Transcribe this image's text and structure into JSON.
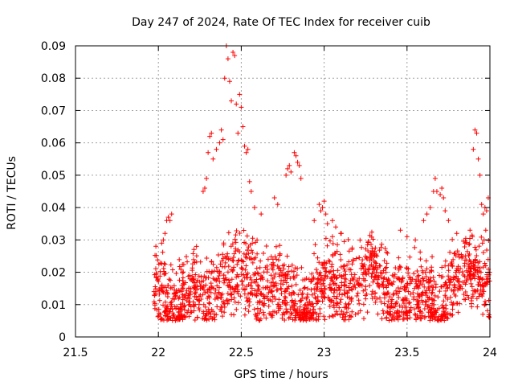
{
  "chart_data": {
    "type": "scatter",
    "title": "Day 247 of 2024, Rate Of TEC Index for receiver cuib",
    "xlabel": "GPS time / hours",
    "ylabel": "ROTI / TECUs",
    "xlim": [
      21.5,
      24
    ],
    "ylim": [
      0,
      0.09
    ],
    "xticks": [
      21.5,
      22,
      22.5,
      23,
      23.5,
      24
    ],
    "xtick_labels": [
      "21.5",
      "22",
      "22.5",
      "23",
      "23.5",
      "24"
    ],
    "yticks": [
      0,
      0.01,
      0.02,
      0.03,
      0.04,
      0.05,
      0.06,
      0.07,
      0.08,
      0.09
    ],
    "ytick_labels": [
      "0",
      "0.01",
      "0.02",
      "0.03",
      "0.04",
      "0.05",
      "0.06",
      "0.07",
      "0.08",
      "0.09"
    ],
    "grid": true,
    "marker": "+",
    "marker_color": "#ff0000",
    "series": [
      {
        "name": "ROTI",
        "points": [
          [
            22.27,
            0.045
          ],
          [
            22.28,
            0.046
          ],
          [
            22.29,
            0.049
          ],
          [
            22.3,
            0.057
          ],
          [
            22.31,
            0.062
          ],
          [
            22.32,
            0.063
          ],
          [
            22.33,
            0.055
          ],
          [
            22.35,
            0.058
          ],
          [
            22.37,
            0.06
          ],
          [
            22.38,
            0.064
          ],
          [
            22.39,
            0.061
          ],
          [
            22.4,
            0.08
          ],
          [
            22.41,
            0.09
          ],
          [
            22.42,
            0.086
          ],
          [
            22.43,
            0.079
          ],
          [
            22.44,
            0.073
          ],
          [
            22.45,
            0.088
          ],
          [
            22.46,
            0.087
          ],
          [
            22.47,
            0.072
          ],
          [
            22.48,
            0.063
          ],
          [
            22.49,
            0.075
          ],
          [
            22.5,
            0.071
          ],
          [
            22.51,
            0.065
          ],
          [
            22.52,
            0.059
          ],
          [
            22.53,
            0.057
          ],
          [
            22.54,
            0.058
          ],
          [
            22.55,
            0.048
          ],
          [
            22.56,
            0.045
          ],
          [
            22.58,
            0.04
          ],
          [
            22.62,
            0.038
          ],
          [
            22.7,
            0.043
          ],
          [
            22.72,
            0.041
          ],
          [
            22.77,
            0.05
          ],
          [
            22.78,
            0.052
          ],
          [
            22.79,
            0.053
          ],
          [
            22.8,
            0.051
          ],
          [
            22.82,
            0.057
          ],
          [
            22.83,
            0.056
          ],
          [
            22.84,
            0.054
          ],
          [
            22.85,
            0.053
          ],
          [
            22.86,
            0.049
          ],
          [
            22.23,
            0.028
          ],
          [
            22.22,
            0.023
          ],
          [
            22.05,
            0.036
          ],
          [
            22.06,
            0.037
          ],
          [
            22.07,
            0.036
          ],
          [
            22.08,
            0.038
          ],
          [
            22.04,
            0.032
          ],
          [
            22.03,
            0.03
          ],
          [
            22.02,
            0.029
          ],
          [
            22.94,
            0.036
          ],
          [
            22.97,
            0.041
          ],
          [
            22.98,
            0.039
          ],
          [
            22.99,
            0.04
          ],
          [
            23.0,
            0.042
          ],
          [
            23.01,
            0.038
          ],
          [
            23.02,
            0.035
          ],
          [
            23.05,
            0.036
          ],
          [
            23.07,
            0.034
          ],
          [
            23.1,
            0.032
          ],
          [
            23.05,
            0.031
          ],
          [
            23.46,
            0.033
          ],
          [
            23.5,
            0.031
          ],
          [
            23.55,
            0.03
          ],
          [
            23.6,
            0.036
          ],
          [
            23.62,
            0.038
          ],
          [
            23.64,
            0.04
          ],
          [
            23.66,
            0.045
          ],
          [
            23.67,
            0.049
          ],
          [
            23.68,
            0.045
          ],
          [
            23.7,
            0.044
          ],
          [
            23.71,
            0.046
          ],
          [
            23.72,
            0.043
          ],
          [
            23.73,
            0.039
          ],
          [
            23.75,
            0.036
          ],
          [
            23.8,
            0.032
          ],
          [
            23.85,
            0.029
          ],
          [
            23.88,
            0.033
          ],
          [
            23.9,
            0.058
          ],
          [
            23.91,
            0.064
          ],
          [
            23.92,
            0.063
          ],
          [
            23.93,
            0.055
          ],
          [
            23.94,
            0.05
          ],
          [
            23.95,
            0.041
          ],
          [
            23.96,
            0.038
          ],
          [
            23.97,
            0.04
          ],
          [
            23.98,
            0.039
          ],
          [
            23.99,
            0.043
          ],
          [
            23.975,
            0.033
          ],
          [
            23.965,
            0.03
          ],
          [
            23.955,
            0.029
          ]
        ]
      }
    ],
    "dense_band": {
      "x_range": [
        21.97,
        24.0
      ],
      "y_range": [
        0.005,
        0.033
      ],
      "approx_count": 1800
    }
  }
}
